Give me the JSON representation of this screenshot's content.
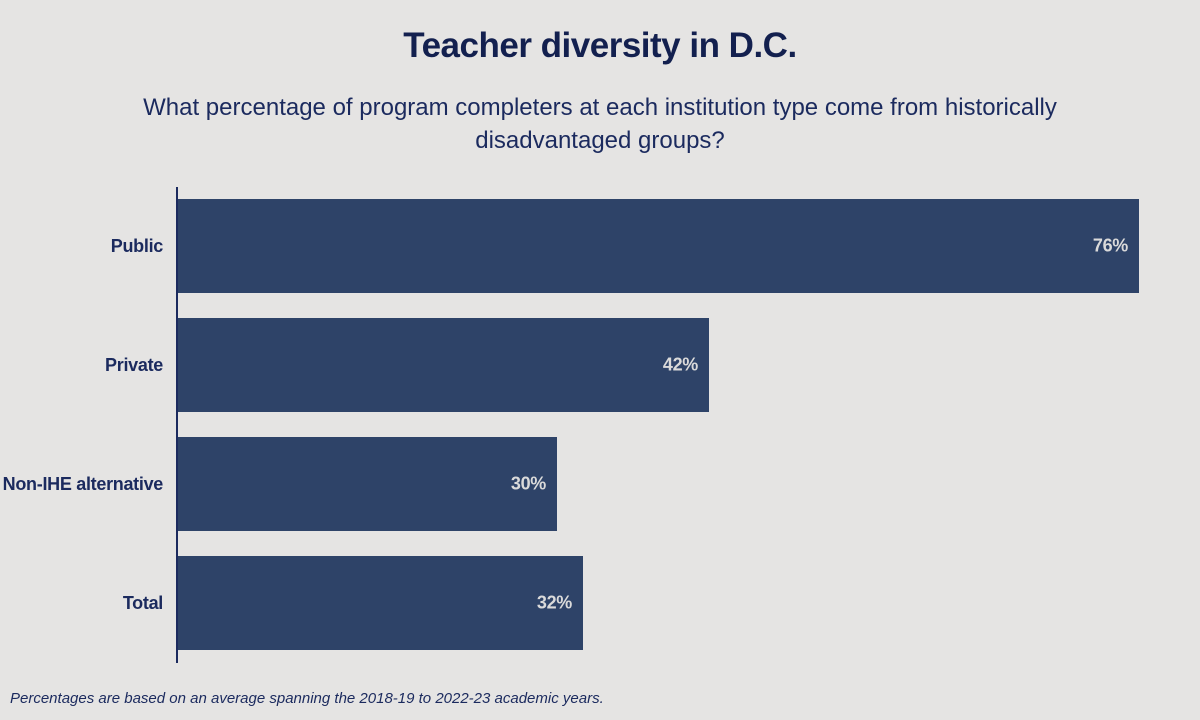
{
  "chart": {
    "title": "Teacher diversity in D.C.",
    "subtitle": "What percentage of program completers at each institution type come from historically disadvantaged groups?",
    "footnote": "Percentages are based on an average spanning the 2018-19 to 2022-23 academic years."
  },
  "chart_data": {
    "type": "bar",
    "orientation": "horizontal",
    "title": "Teacher diversity in D.C.",
    "subtitle": "What percentage of program completers at each institution type come from historically disadvantaged groups?",
    "footnote": "Percentages are based on an average spanning the 2018-19 to 2022-23 academic years.",
    "categories": [
      "Public",
      "Private",
      "Non-IHE alternative",
      "Total"
    ],
    "values": [
      76,
      42,
      30,
      32
    ],
    "value_labels": [
      "76%",
      "42%",
      "30%",
      "32%"
    ],
    "xlabel": "",
    "ylabel": "",
    "xlim": [
      0,
      76
    ],
    "grid": false,
    "legend": false,
    "colors": {
      "bar": "#2e4368",
      "background": "#e5e4e3",
      "navy": "#1b2a5e",
      "navy_dark": "#13204f",
      "value_label": "#dadada"
    }
  }
}
